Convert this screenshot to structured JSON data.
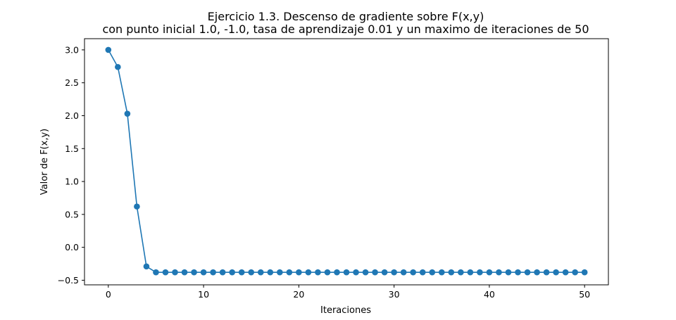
{
  "chart_data": {
    "type": "line",
    "title_line1": "Ejercicio 1.3. Descenso de gradiente sobre F(x,y)",
    "title_line2": "con punto inicial 1.0, -1.0, tasa de aprendizaje 0.01 y un maximo de iteraciones de 50",
    "xlabel": "Iteraciones",
    "ylabel": "Valor de F(x,y)",
    "xlim": [
      -2.5,
      52.5
    ],
    "ylim": [
      -0.57,
      3.17
    ],
    "xticks": [
      0,
      10,
      20,
      30,
      40,
      50
    ],
    "xtick_labels": [
      "0",
      "10",
      "20",
      "30",
      "40",
      "50"
    ],
    "yticks": [
      -0.5,
      0.0,
      0.5,
      1.0,
      1.5,
      2.0,
      2.5,
      3.0
    ],
    "ytick_labels": [
      "−0.5",
      "0.0",
      "0.5",
      "1.0",
      "1.5",
      "2.0",
      "2.5",
      "3.0"
    ],
    "grid": false,
    "marker": "circle",
    "series_color": "#1f77b4",
    "series": [
      {
        "x": [
          0,
          1,
          2,
          3,
          4,
          5,
          6,
          7,
          8,
          9,
          10,
          11,
          12,
          13,
          14,
          15,
          16,
          17,
          18,
          19,
          20,
          21,
          22,
          23,
          24,
          25,
          26,
          27,
          28,
          29,
          30,
          31,
          32,
          33,
          34,
          35,
          36,
          37,
          38,
          39,
          40,
          41,
          42,
          43,
          44,
          45,
          46,
          47,
          48,
          49,
          50
        ],
        "values": [
          3.0,
          2.74,
          2.03,
          0.62,
          -0.29,
          -0.38,
          -0.38,
          -0.38,
          -0.38,
          -0.38,
          -0.38,
          -0.38,
          -0.38,
          -0.38,
          -0.38,
          -0.38,
          -0.38,
          -0.38,
          -0.38,
          -0.38,
          -0.38,
          -0.38,
          -0.38,
          -0.38,
          -0.38,
          -0.38,
          -0.38,
          -0.38,
          -0.38,
          -0.38,
          -0.38,
          -0.38,
          -0.38,
          -0.38,
          -0.38,
          -0.38,
          -0.38,
          -0.38,
          -0.38,
          -0.38,
          -0.38,
          -0.38,
          -0.38,
          -0.38,
          -0.38,
          -0.38,
          -0.38,
          -0.38,
          -0.38,
          -0.38,
          -0.38
        ]
      }
    ]
  }
}
